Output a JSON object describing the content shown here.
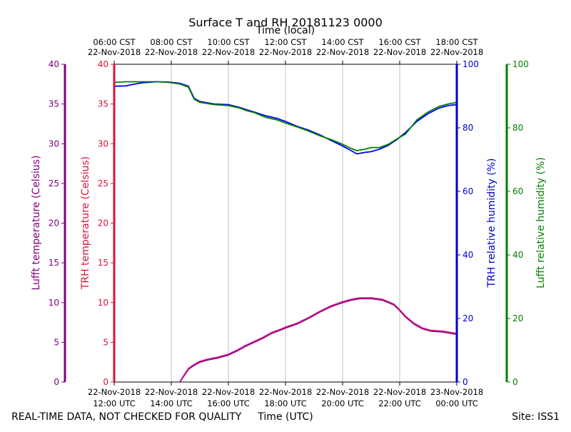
{
  "chart_data": {
    "type": "line",
    "title": "Surface T and RH 20181123 0000",
    "x_top_label": "Time (local)",
    "x_bottom_label": "Time (UTC)",
    "left_outer_ylabel": "Lufft temperature (Celsius)",
    "left_inner_ylabel": "TRH temperature (Celsius)",
    "right_inner_ylabel": "TRH relative humidity (%)",
    "right_outer_ylabel": "Lufft relative humidity (%)",
    "footer_left": "REAL-TIME DATA, NOT CHECKED FOR QUALITY",
    "footer_right": "Site: ISS1",
    "temp_ylim": [
      0,
      40
    ],
    "rh_ylim": [
      0,
      100
    ],
    "xlim_hours_utc": [
      12,
      24
    ],
    "grid": "vertical",
    "temp_ticks": [
      "0",
      "5",
      "10",
      "15",
      "20",
      "25",
      "30",
      "35",
      "40"
    ],
    "rh_ticks": [
      "0",
      "20",
      "40",
      "60",
      "80",
      "100"
    ],
    "bottom_ticks": [
      {
        "date": "22-Nov-2018",
        "time": "12:00 UTC"
      },
      {
        "date": "22-Nov-2018",
        "time": "14:00 UTC"
      },
      {
        "date": "22-Nov-2018",
        "time": "16:00 UTC"
      },
      {
        "date": "22-Nov-2018",
        "time": "18:00 UTC"
      },
      {
        "date": "22-Nov-2018",
        "time": "20:00 UTC"
      },
      {
        "date": "22-Nov-2018",
        "time": "22:00 UTC"
      },
      {
        "date": "23-Nov-2018",
        "time": "00:00 UTC"
      }
    ],
    "top_ticks": [
      {
        "time": "06:00 CST",
        "date": "22-Nov-2018"
      },
      {
        "time": "08:00 CST",
        "date": "22-Nov-2018"
      },
      {
        "time": "10:00 CST",
        "date": "22-Nov-2018"
      },
      {
        "time": "12:00 CST",
        "date": "22-Nov-2018"
      },
      {
        "time": "14:00 CST",
        "date": "22-Nov-2018"
      },
      {
        "time": "16:00 CST",
        "date": "22-Nov-2018"
      },
      {
        "time": "18:00 CST",
        "date": "22-Nov-2018"
      }
    ],
    "colors": {
      "lufft_temp_axis": "#800080",
      "trh_temp_axis": "#dc143c",
      "trh_rh_axis": "#0000cd",
      "lufft_rh_axis": "#008000",
      "lufft_temp_line": "#800080",
      "trh_temp_line": "#c71585",
      "trh_rh_line": "#0000ff",
      "lufft_rh_line": "#008000"
    },
    "series": [
      {
        "axis": "rh",
        "color_key": "trh_rh_line",
        "x": [
          12.0,
          12.4,
          12.8,
          13.0,
          13.5,
          13.9,
          14.3,
          14.6,
          14.8,
          15.0,
          15.5,
          16.0,
          16.4,
          16.6,
          16.9,
          17.3,
          17.7,
          18.0,
          18.4,
          18.8,
          19.2,
          19.6,
          20.0,
          20.3,
          20.5,
          20.8,
          21.0,
          21.3,
          21.6,
          21.9,
          22.2,
          22.6,
          23.0,
          23.4,
          23.7,
          24.0
        ],
        "y": [
          93.1,
          93.2,
          93.9,
          94.2,
          94.5,
          94.4,
          94.0,
          93.1,
          89.3,
          88.3,
          87.5,
          87.3,
          86.4,
          85.8,
          85.0,
          83.8,
          83.0,
          82.0,
          80.5,
          79.3,
          77.8,
          76.0,
          74.3,
          72.8,
          71.8,
          72.3,
          72.5,
          73.3,
          74.5,
          76.3,
          78.5,
          82.0,
          84.5,
          86.3,
          87.0,
          87.3
        ]
      },
      {
        "axis": "rh",
        "color_key": "lufft_rh_line",
        "x": [
          12.0,
          12.4,
          12.8,
          13.0,
          13.5,
          13.9,
          14.3,
          14.6,
          14.8,
          15.0,
          15.5,
          16.0,
          16.4,
          16.6,
          16.9,
          17.3,
          17.7,
          18.0,
          18.4,
          18.8,
          19.2,
          19.6,
          20.0,
          20.3,
          20.5,
          20.8,
          21.0,
          21.3,
          21.6,
          21.9,
          22.2,
          22.6,
          23.0,
          23.4,
          23.7,
          24.0
        ],
        "y": [
          94.3,
          94.5,
          94.5,
          94.5,
          94.5,
          94.3,
          93.8,
          92.8,
          89.0,
          88.0,
          87.3,
          87.0,
          86.2,
          85.5,
          84.8,
          83.3,
          82.5,
          81.5,
          80.3,
          79.0,
          77.5,
          76.3,
          74.8,
          73.5,
          72.8,
          73.3,
          73.8,
          73.8,
          74.8,
          76.5,
          78.0,
          82.5,
          85.0,
          86.8,
          87.5,
          88.0
        ]
      },
      {
        "axis": "temp",
        "color_key": "lufft_temp_line",
        "x": [
          14.3,
          14.45,
          14.6,
          14.8,
          15.0,
          15.3,
          15.6,
          16.0,
          16.3,
          16.6,
          16.9,
          17.2,
          17.5,
          17.8,
          18.0,
          18.4,
          18.8,
          19.2,
          19.6,
          20.0,
          20.3,
          20.6,
          21.0,
          21.4,
          21.8,
          22.0,
          22.2,
          22.5,
          22.8,
          23.1,
          23.5,
          24.0
        ],
        "y": [
          0.0,
          0.8,
          1.6,
          2.1,
          2.5,
          2.8,
          3.0,
          3.4,
          3.9,
          4.5,
          5.0,
          5.5,
          6.1,
          6.5,
          6.8,
          7.3,
          8.0,
          8.8,
          9.5,
          10.0,
          10.3,
          10.5,
          10.5,
          10.3,
          9.7,
          9.0,
          8.2,
          7.3,
          6.7,
          6.4,
          6.3,
          6.0
        ]
      },
      {
        "axis": "temp",
        "color_key": "trh_temp_line",
        "x": [
          14.3,
          14.45,
          14.6,
          14.8,
          15.0,
          15.3,
          15.6,
          16.0,
          16.3,
          16.6,
          16.9,
          17.2,
          17.5,
          17.8,
          18.0,
          18.4,
          18.8,
          19.2,
          19.6,
          20.0,
          20.3,
          20.6,
          21.0,
          21.4,
          21.8,
          22.0,
          22.2,
          22.5,
          22.8,
          23.1,
          23.5,
          24.0
        ],
        "y": [
          0.0,
          0.9,
          1.7,
          2.2,
          2.6,
          2.9,
          3.1,
          3.5,
          4.0,
          4.6,
          5.1,
          5.6,
          6.2,
          6.6,
          6.9,
          7.4,
          8.1,
          8.9,
          9.6,
          10.1,
          10.4,
          10.6,
          10.6,
          10.4,
          9.8,
          9.1,
          8.3,
          7.4,
          6.8,
          6.5,
          6.4,
          6.1
        ]
      }
    ]
  }
}
